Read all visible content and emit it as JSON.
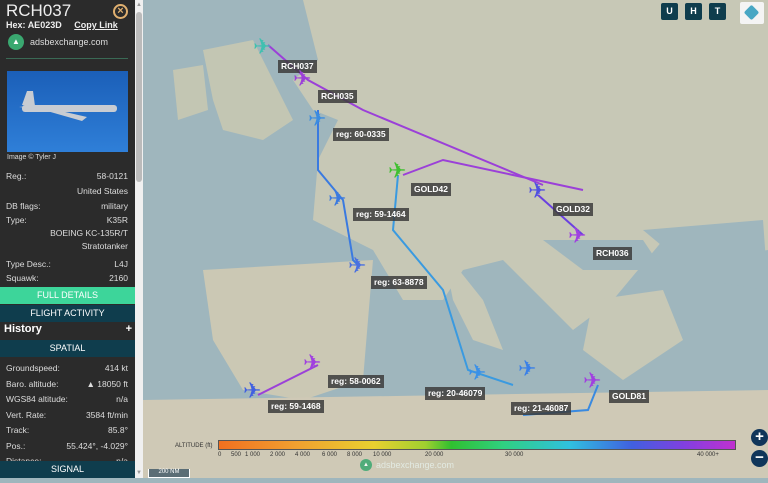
{
  "sidebar": {
    "callsign": "RCH037",
    "hex_label": "Hex:",
    "hex": "AE023D",
    "copy_link": "Copy Link",
    "site": "adsbexchange.com",
    "image_credit": "Image © Tyler J",
    "details": [
      {
        "label": "Reg.:",
        "value": "58-0121"
      },
      {
        "label": "",
        "value": "United States"
      },
      {
        "label": "DB flags:",
        "value": "military"
      },
      {
        "label": "Type:",
        "value": "K35R"
      },
      {
        "label": "",
        "value": "BOEING KC-135R/T"
      },
      {
        "label": "",
        "value": "Stratotanker"
      },
      {
        "label": "Type Desc.:",
        "value": "L4J"
      },
      {
        "label": "Squawk:",
        "value": "2160"
      }
    ],
    "full_details": "FULL DETAILS",
    "flight_activity": "FLIGHT ACTIVITY",
    "history": "History",
    "history_toggle": "+",
    "spatial": "SPATIAL",
    "spatial_rows": [
      {
        "label": "Groundspeed:",
        "value": "414 kt"
      },
      {
        "label": "Baro. altitude:",
        "value": "▲ 18050 ft"
      },
      {
        "label": "WGS84 altitude:",
        "value": "n/a"
      },
      {
        "label": "Vert. Rate:",
        "value": "3584 ft/min"
      },
      {
        "label": "Track:",
        "value": "85.8°"
      },
      {
        "label": "Pos.:",
        "value": "55.424°, -4.029°"
      },
      {
        "label": "Distance:",
        "value": "n/a"
      }
    ],
    "signal": "SIGNAL"
  },
  "toolbar": {
    "buttons": [
      "U",
      "H",
      "T"
    ]
  },
  "aircraft": [
    {
      "label": "RCH037",
      "color": "#40c0b0"
    },
    {
      "label": "RCH035",
      "color": "#9b40d8"
    },
    {
      "label": "reg: 60-0335",
      "color": "#3a8ce0"
    },
    {
      "label": "GOLD42",
      "color": "#40c030"
    },
    {
      "label": "GOLD32",
      "color": "#5050e0"
    },
    {
      "label": "reg: 59-1464",
      "color": "#3a7ae0"
    },
    {
      "label": "RCH036",
      "color": "#a040e0"
    },
    {
      "label": "reg: 63-8878",
      "color": "#4a70e0"
    },
    {
      "label": "reg: 58-0062",
      "color": "#a040e0"
    },
    {
      "label": "reg: 59-1468",
      "color": "#4060e0"
    },
    {
      "label": "reg: 20-46079",
      "color": "#3a90e8"
    },
    {
      "label": "reg: 21-46087",
      "color": "#3a80e8"
    },
    {
      "label": "GOLD81",
      "color": "#a040e0"
    }
  ],
  "legend": {
    "title": "ALTITUDE (ft)",
    "ticks": [
      "0",
      "500",
      "1 000",
      "2 000",
      "4 000",
      "6 000",
      "8 000",
      "10 000",
      "20 000",
      "30 000",
      "40 000+"
    ]
  },
  "map": {
    "scale": "200 NM",
    "watermark": "adsbexchange.com",
    "zoom_in": "+",
    "zoom_out": "−"
  }
}
